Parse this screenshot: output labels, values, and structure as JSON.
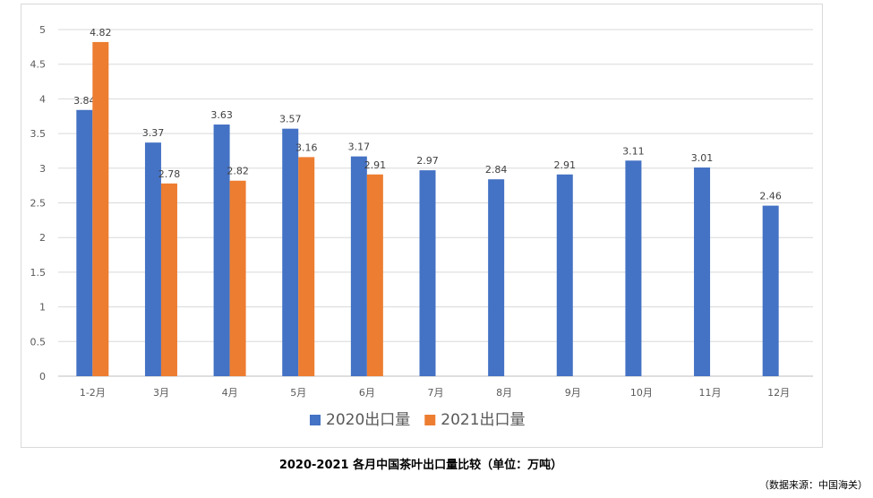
{
  "chart_data": {
    "type": "bar",
    "categories": [
      "1-2月",
      "3月",
      "4月",
      "5月",
      "6月",
      "7月",
      "8月",
      "9月",
      "10月",
      "11月",
      "12月"
    ],
    "series": [
      {
        "name": "2020出口量",
        "color": "#4472c4",
        "values": [
          3.84,
          3.37,
          3.63,
          3.57,
          3.17,
          2.97,
          2.84,
          2.91,
          3.11,
          3.01,
          2.46
        ]
      },
      {
        "name": "2021出口量",
        "color": "#ed7d31",
        "values": [
          4.82,
          2.78,
          2.82,
          3.16,
          2.91,
          null,
          null,
          null,
          null,
          null,
          null
        ]
      }
    ],
    "ylim": [
      0,
      5
    ],
    "yticks": [
      "0",
      "0.5",
      "1",
      "1.5",
      "2",
      "2.5",
      "3",
      "3.5",
      "4",
      "4.5",
      "5"
    ],
    "grid": true,
    "legend": "bottom",
    "title": "2020-2021 各月中国茶叶出口量比较（单位：万吨）"
  },
  "source_note": "（数据来源：中国海关）"
}
